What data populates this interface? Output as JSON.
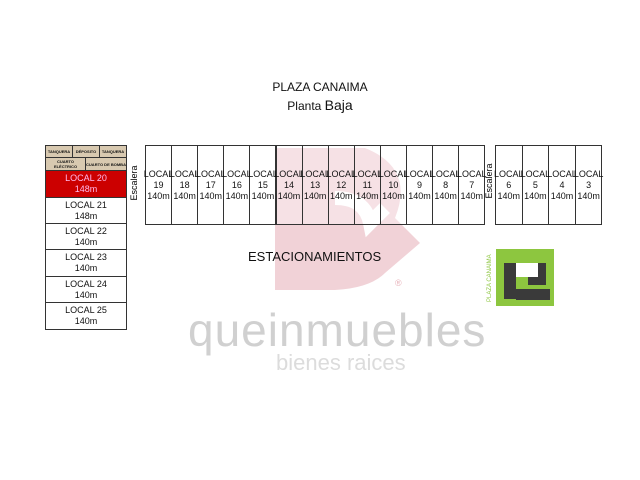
{
  "header": {
    "title": "PLAZA CANAIMA",
    "subtitle_prefix": "Planta",
    "subtitle_main": "Baja"
  },
  "service_rooms": {
    "row1": [
      "TANQUERA",
      "DÉPOSITO",
      "TANQUERA"
    ],
    "row2": [
      "CUARTO ELÉCTRICO",
      "CUARTO DE BOMBA"
    ]
  },
  "left_locals": [
    {
      "name": "LOCAL 20",
      "size": "148m",
      "highlight": true
    },
    {
      "name": "LOCAL 21",
      "size": "148m"
    },
    {
      "name": "LOCAL 22",
      "size": "140m"
    },
    {
      "name": "LOCAL 23",
      "size": "140m"
    },
    {
      "name": "LOCAL 24",
      "size": "140m"
    },
    {
      "name": "LOCAL 25",
      "size": "140m"
    }
  ],
  "stair_label": "Escalera",
  "top_locals_a": [
    {
      "label": "LOCAL",
      "num": "19",
      "size": "140m"
    },
    {
      "label": "LOCAL",
      "num": "18",
      "size": "140m"
    },
    {
      "label": "LOCAL",
      "num": "17",
      "size": "140m"
    },
    {
      "label": "LOCAL",
      "num": "16",
      "size": "140m"
    },
    {
      "label": "LOCAL",
      "num": "15",
      "size": "140m"
    },
    {
      "label": "LOCAL",
      "num": "14",
      "size": "140m"
    },
    {
      "label": "LOCAL",
      "num": "13",
      "size": "140m"
    },
    {
      "label": "LOCAL",
      "num": "12",
      "size": "140m"
    },
    {
      "label": "LOCAL",
      "num": "11",
      "size": "140m"
    },
    {
      "label": "LOCAL",
      "num": "10",
      "size": "140m"
    },
    {
      "label": "LOCAL",
      "num": "9",
      "size": "140m"
    },
    {
      "label": "LOCAL",
      "num": "8",
      "size": "140m"
    },
    {
      "label": "LOCAL",
      "num": "7",
      "size": "140m"
    }
  ],
  "top_locals_b": [
    {
      "label": "LOCAL",
      "num": "6",
      "size": "140m"
    },
    {
      "label": "LOCAL",
      "num": "5",
      "size": "140m"
    },
    {
      "label": "LOCAL",
      "num": "4",
      "size": "140m"
    },
    {
      "label": "LOCAL",
      "num": "3",
      "size": "140m"
    }
  ],
  "parking_label": "ESTACIONAMIENTOS",
  "watermark": {
    "brand": "queinmuebles",
    "tagline": "bienes raices",
    "registered": "®"
  },
  "logo": {
    "text": "PLAZA CANAIMA"
  },
  "colors": {
    "highlight": "#cc0000",
    "watermark_pink": "#e8b4bc",
    "logo_green": "#8dc63f",
    "logo_dark": "#3a3a3a"
  }
}
